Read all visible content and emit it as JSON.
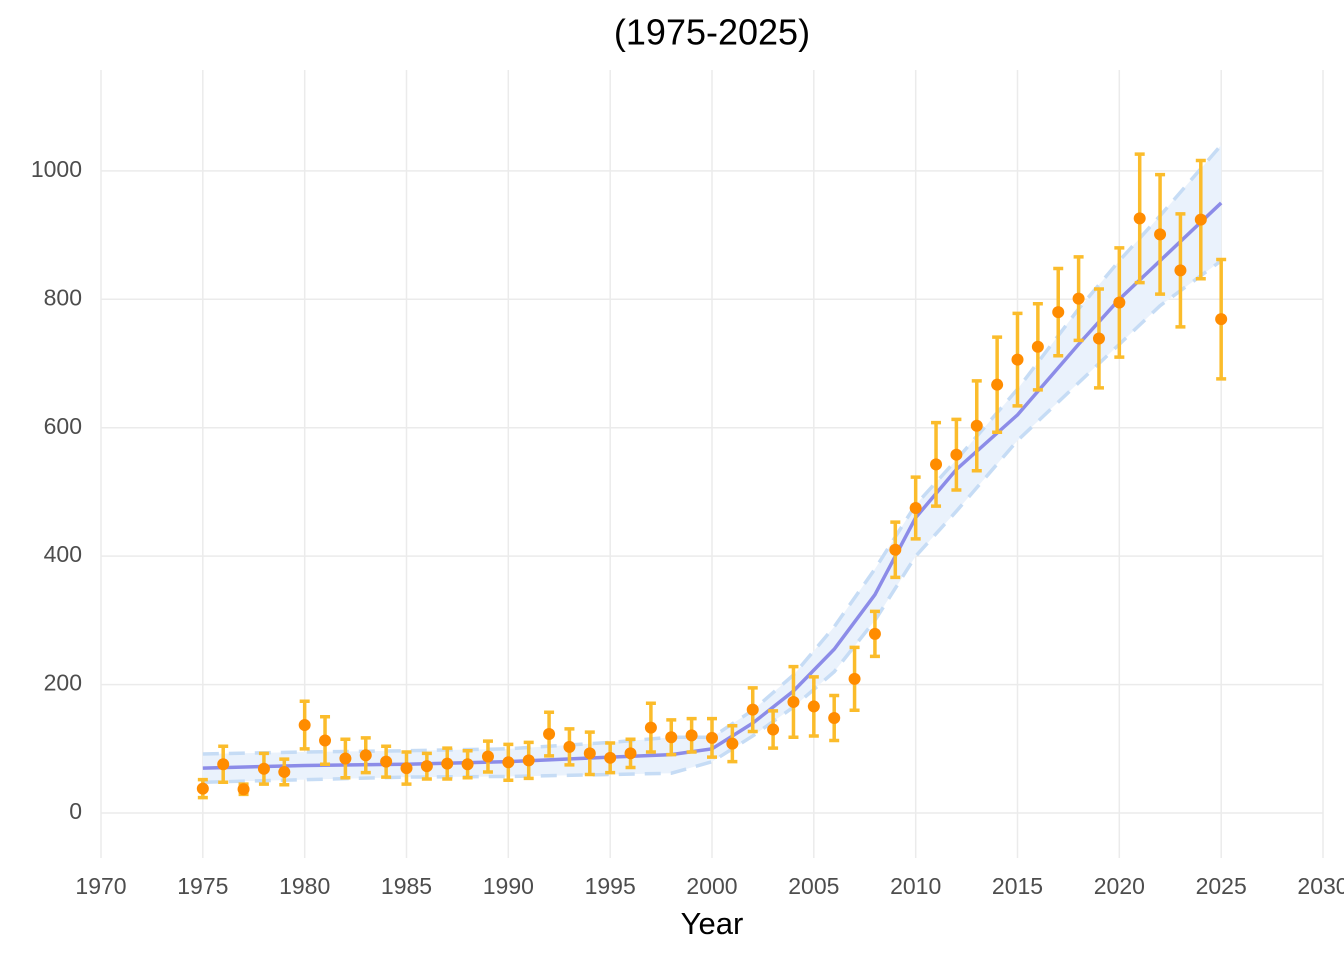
{
  "chart_data": {
    "type": "errorbar",
    "title": "(1975-2025)",
    "x_label": "Year",
    "x": [
      1975,
      1976,
      1977,
      1978,
      1979,
      1980,
      1981,
      1982,
      1983,
      1984,
      1985,
      1986,
      1987,
      1988,
      1989,
      1990,
      1991,
      1992,
      1993,
      1994,
      1995,
      1996,
      1997,
      1998,
      1999,
      2000,
      2001,
      2002,
      2003,
      2004,
      2005,
      2006,
      2007,
      2008,
      2009,
      2010,
      2011,
      2012,
      2013,
      2014,
      2015,
      2016,
      2017,
      2018,
      2019,
      2020,
      2021,
      2022,
      2023,
      2024,
      2025
    ],
    "values": [
      38,
      76,
      37,
      69,
      64,
      137,
      113,
      85,
      90,
      80,
      70,
      73,
      77,
      76,
      88,
      79,
      82,
      123,
      103,
      93,
      86,
      93,
      133,
      118,
      121,
      117,
      108,
      161,
      130,
      173,
      166,
      148,
      209,
      279,
      410,
      475,
      543,
      558,
      603,
      667,
      706,
      726,
      780,
      801,
      739,
      795,
      926,
      901,
      845,
      924,
      769
    ],
    "errors": [
      14,
      28,
      8,
      24,
      20,
      37,
      37,
      30,
      27,
      24,
      25,
      20,
      24,
      21,
      24,
      28,
      28,
      34,
      28,
      33,
      23,
      22,
      38,
      27,
      26,
      30,
      28,
      34,
      29,
      55,
      46,
      35,
      49,
      35,
      43,
      48,
      65,
      55,
      70,
      74,
      72,
      67,
      68,
      65,
      77,
      85,
      100,
      93,
      88,
      92,
      93
    ],
    "point_color": "#ff8c00",
    "errorbar_color": "#fbbc2b",
    "fit": {
      "x": [
        1975,
        1980,
        1985,
        1990,
        1995,
        1998,
        2000,
        2002,
        2004,
        2006,
        2008,
        2010,
        2012,
        2015,
        2018,
        2020,
        2022,
        2025
      ],
      "values": [
        70,
        74,
        76,
        80,
        87,
        91,
        100,
        140,
        190,
        255,
        340,
        460,
        535,
        620,
        730,
        800,
        860,
        950
      ],
      "lower": [
        48,
        52,
        56,
        57,
        60,
        62,
        80,
        120,
        165,
        220,
        300,
        400,
        470,
        580,
        670,
        730,
        790,
        860
      ],
      "upper": [
        92,
        95,
        97,
        100,
        110,
        118,
        118,
        160,
        215,
        290,
        380,
        480,
        550,
        660,
        785,
        860,
        930,
        1040
      ],
      "color": "#8c8ce8",
      "band_color": "#eaf2fc",
      "band_line_color": "#c6dcf5"
    },
    "xlim": [
      1970,
      2030
    ],
    "ylim": [
      -70,
      1157
    ],
    "xticks": [
      1970,
      1975,
      1980,
      1985,
      1990,
      1995,
      2000,
      2005,
      2010,
      2015,
      2020,
      2025,
      2030
    ],
    "yticks": [
      0,
      200,
      400,
      600,
      800,
      1000
    ],
    "grid": true
  }
}
